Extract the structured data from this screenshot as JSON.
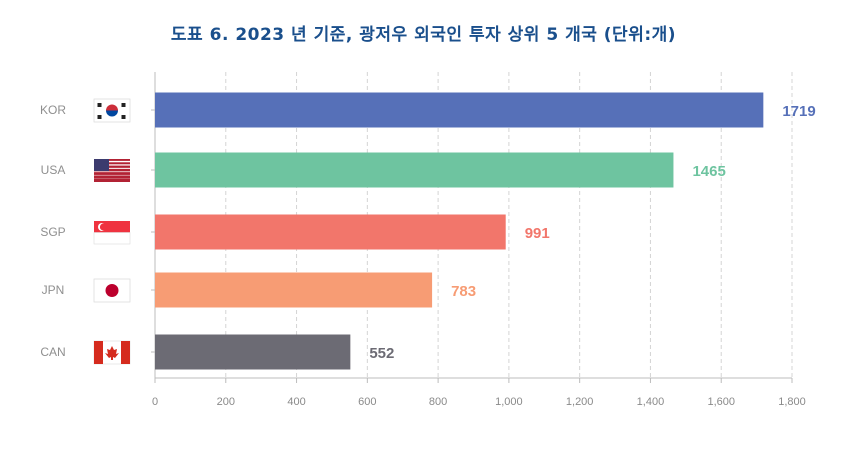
{
  "title": "도표 6. 2023 년 기준, 광저우 외국인 투자 상위 5 개국 (단위:개)",
  "chart_data": {
    "type": "bar",
    "orientation": "horizontal",
    "title": "도표 6. 2023 년 기준, 광저우 외국인 투자 상위 5 개국 (단위:개)",
    "categories": [
      "KOR",
      "USA",
      "SGP",
      "JPN",
      "CAN"
    ],
    "values": [
      1719,
      1465,
      991,
      783,
      552
    ],
    "colors": [
      "#5670b8",
      "#6ec4a0",
      "#f2766b",
      "#f79c74",
      "#6c6b74"
    ],
    "category_icons": [
      "korea-flag-icon",
      "usa-flag-icon",
      "singapore-flag-icon",
      "japan-flag-icon",
      "canada-flag-icon"
    ],
    "xlim": [
      0,
      1800
    ],
    "xticks": [
      0,
      200,
      400,
      600,
      800,
      1000,
      1200,
      1400,
      1600,
      1800
    ],
    "xtick_labels": [
      "0",
      "200",
      "400",
      "600",
      "800",
      "1,000",
      "1,200",
      "1,400",
      "1,600",
      "1,800"
    ],
    "grid": "vertical dashed",
    "xlabel": "",
    "ylabel": ""
  }
}
